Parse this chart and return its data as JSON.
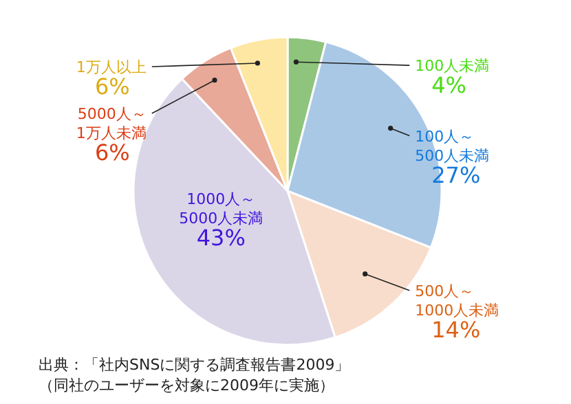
{
  "chart_data": {
    "type": "pie",
    "categories": [
      "100人未満",
      "100人～500人未満",
      "500人～1000人未満",
      "1000人～5000人未満",
      "5000人～1万人未満",
      "1万人以上"
    ],
    "values": [
      4,
      27,
      14,
      43,
      6,
      6
    ],
    "value_labels": [
      "4%",
      "27%",
      "14%",
      "43%",
      "6%",
      "6%"
    ],
    "colors": [
      "#8fc47c",
      "#a9c8e6",
      "#f8ddcc",
      "#dad6e8",
      "#e8a999",
      "#fde7a2"
    ],
    "annotations": [
      "出典：「社内SNSに関する調査報告書2009」",
      "（同社のユーザーを対象に2009年に実施）"
    ]
  }
}
